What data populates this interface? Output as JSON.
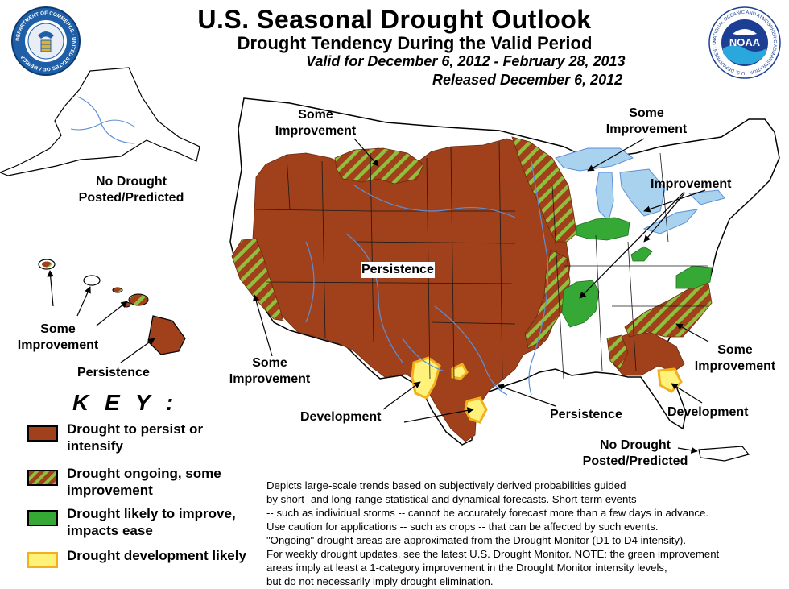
{
  "header": {
    "title": "U.S. Seasonal Drought Outlook",
    "subtitle": "Drought Tendency During the Valid Period",
    "valid": "Valid for December 6, 2012 - February 28, 2013",
    "released": "Released December 6, 2012"
  },
  "logos": {
    "commerce_seal_text": "DEPARTMENT OF COMMERCE · UNITED STATES OF AMERICA",
    "noaa_text": "NOAA",
    "noaa_ring_text": "NATIONAL OCEANIC AND ATMOSPHERIC ADMINISTRATION · U.S. DEPARTMENT OF COMMERCE"
  },
  "colors": {
    "persist": "#a0411b",
    "improve_stripe": "#8fbf3f",
    "improve": "#36a836",
    "develop": "#fff27a",
    "develop_edge": "#f2b01e",
    "water": "#a9d2ee",
    "rivers": "#5d8fd6"
  },
  "map_labels": {
    "some_improvement_nw": [
      "Some",
      "Improvement"
    ],
    "some_improvement_ne": [
      "Some",
      "Improvement"
    ],
    "improvement_ne": "Improvement",
    "no_drought_alaska": [
      "No Drought",
      "Posted/Predicted"
    ],
    "persistence_central": "Persistence",
    "some_improvement_hawaii": [
      "Some",
      "Improvement"
    ],
    "persistence_hawaii": "Persistence",
    "some_improvement_sw": [
      "Some",
      "Improvement"
    ],
    "some_improvement_se": [
      "Some",
      "Improvement"
    ],
    "development_tx": "Development",
    "persistence_gulf": "Persistence",
    "development_fl": "Development",
    "no_drought_pr": [
      "No Drought",
      "Posted/Predicted"
    ]
  },
  "key": {
    "title": "K E Y :",
    "items": [
      {
        "label": "Drought to persist or intensify",
        "color": "#a0411b",
        "pattern": "solid"
      },
      {
        "label": "Drought ongoing, some improvement",
        "color": "#a0411b",
        "pattern": "striped"
      },
      {
        "label": "Drought likely to improve, impacts ease",
        "color": "#36a836",
        "pattern": "solid"
      },
      {
        "label": "Drought development likely",
        "color": "#fff27a",
        "pattern": "solid"
      }
    ]
  },
  "description": [
    "Depicts large-scale trends based on subjectively derived probabilities guided",
    "by short- and long-range statistical and dynamical forecasts. Short-term events",
    "-- such as individual storms -- cannot be accurately forecast more than a few days in advance.",
    "Use caution for applications -- such as crops -- that can be affected by such events.",
    "\"Ongoing\" drought areas are approximated from the Drought Monitor (D1 to D4 intensity).",
    "For weekly drought updates, see the latest U.S. Drought Monitor. NOTE: the green improvement",
    "areas imply at least a 1-category improvement in the Drought Monitor intensity levels,",
    "but do not necessarily imply drought elimination."
  ]
}
